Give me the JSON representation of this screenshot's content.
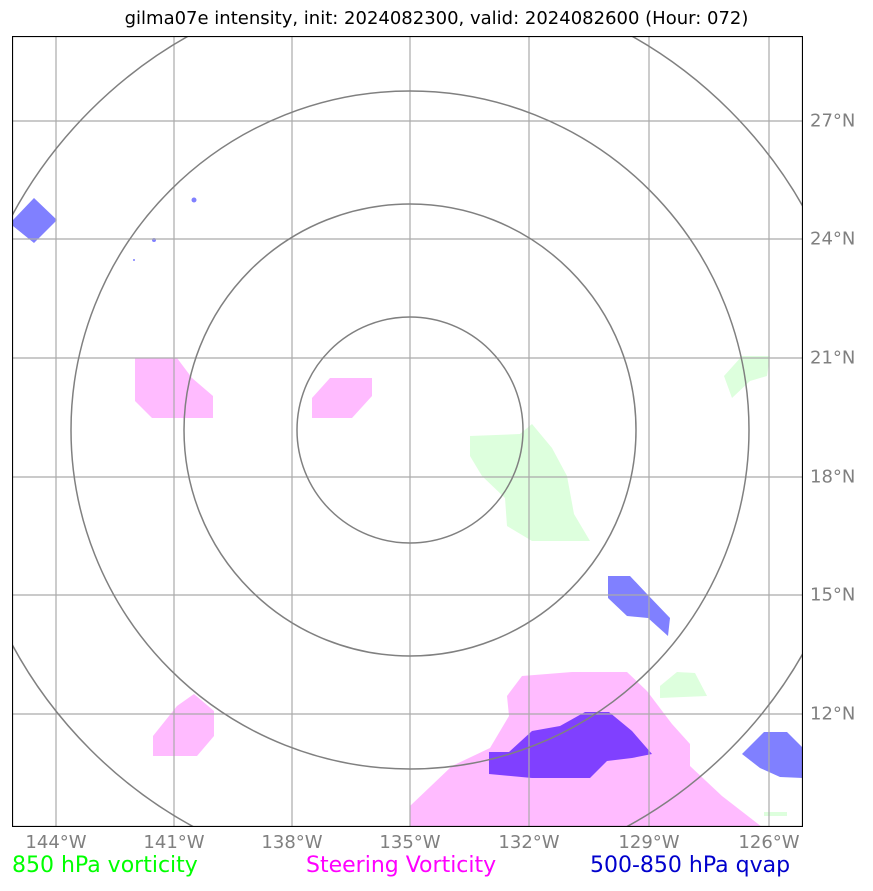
{
  "title": "gilma07e intensity, init: 2024082300, valid: 2024082600 (Hour: 072)",
  "map": {
    "lon_labels": [
      "144°W",
      "141°W",
      "138°W",
      "135°W",
      "132°W",
      "129°W",
      "126°W"
    ],
    "lat_labels": [
      "27°N",
      "24°N",
      "21°N",
      "18°N",
      "15°N",
      "12°N"
    ],
    "center": {
      "lon": "135°W",
      "lat": "19°N"
    },
    "range_rings": 4
  },
  "legend": {
    "items": [
      {
        "label": "850 hPa vorticity",
        "color": "#00ff00"
      },
      {
        "label": "Steering Vorticity",
        "color": "#ff00ff"
      },
      {
        "label": "500-850 hPa qvap",
        "color": "#0000cc"
      }
    ]
  },
  "colors": {
    "vorticity_fill": "#ddffdd",
    "steering_fill": "#ffbbff",
    "qvap_fill": "#8080ff",
    "overlap_fill": "#8040ff",
    "grid": "#aaaaaa",
    "rings": "#808080"
  }
}
